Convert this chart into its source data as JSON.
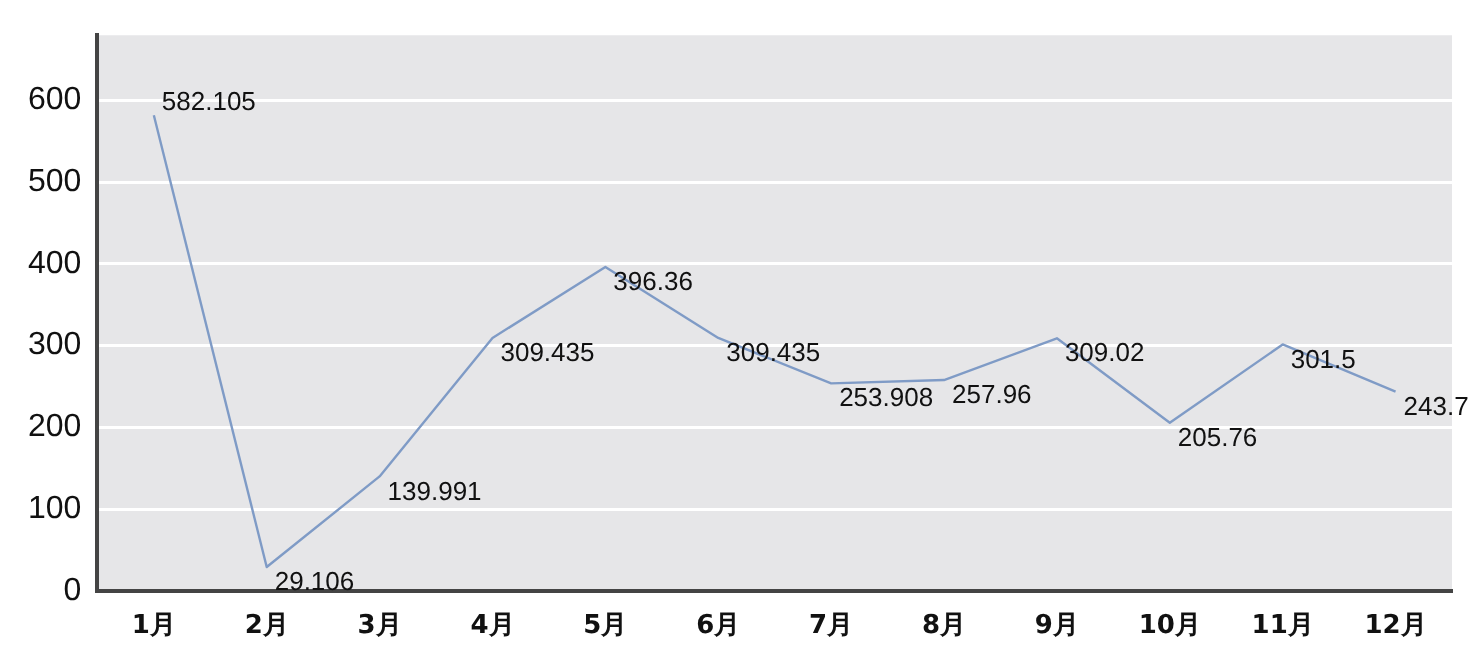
{
  "chart_data": {
    "type": "line",
    "categories": [
      "1月",
      "2月",
      "3月",
      "4月",
      "5月",
      "6月",
      "7月",
      "8月",
      "9月",
      "10月",
      "11月",
      "12月"
    ],
    "series": [
      {
        "color": "#7f9bc6",
        "values": [
          582.105,
          29.106,
          139.991,
          309.435,
          396.36,
          309.435,
          253.908,
          257.96,
          309.02,
          205.76,
          301.5,
          243.7
        ]
      }
    ],
    "ylim": [
      0,
      680
    ],
    "yticks": [
      0,
      100,
      200,
      300,
      400,
      500,
      600
    ],
    "grid": "y",
    "legend": false,
    "marker": "none",
    "line_style": "solid",
    "data_labels": true
  }
}
